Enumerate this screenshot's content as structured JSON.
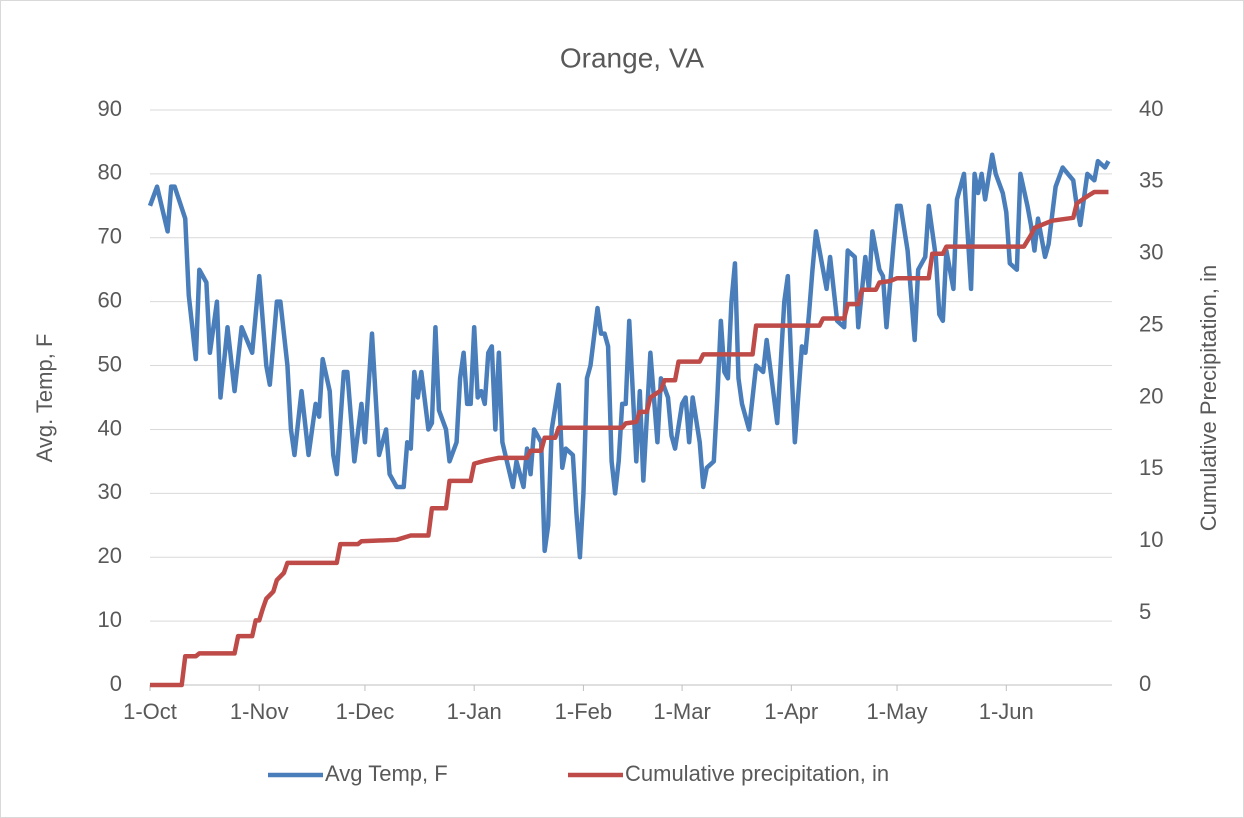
{
  "chart_data": {
    "type": "line",
    "title": "Orange, VA",
    "y_label": "Avg. Temp, F",
    "y2_label": "Cumulative Precipitation, in",
    "xlim": [
      0,
      273
    ],
    "xticks": [
      {
        "value": 0,
        "label": "1-Oct"
      },
      {
        "value": 31,
        "label": "1-Nov"
      },
      {
        "value": 61,
        "label": "1-Dec"
      },
      {
        "value": 92,
        "label": "1-Jan"
      },
      {
        "value": 123,
        "label": "1-Feb"
      },
      {
        "value": 151,
        "label": "1-Mar"
      },
      {
        "value": 182,
        "label": "1-Apr"
      },
      {
        "value": 212,
        "label": "1-May"
      },
      {
        "value": 243,
        "label": "1-Jun"
      }
    ],
    "ylim": [
      0,
      90
    ],
    "yticks": [
      0,
      10,
      20,
      30,
      40,
      50,
      60,
      70,
      80,
      90
    ],
    "y2lim": [
      0,
      40
    ],
    "y2ticks": [
      0,
      5,
      10,
      15,
      20,
      25,
      30,
      35,
      40
    ],
    "grid": true,
    "legend": "bottom",
    "series": [
      {
        "name": "Avg Temp, F",
        "color": "#4a7ebb",
        "x": [
          0,
          2,
          5,
          6,
          7,
          10,
          11,
          13,
          14,
          16,
          17,
          19,
          20,
          22,
          24,
          26,
          29,
          31,
          33,
          34,
          36,
          37,
          39,
          40,
          41,
          43,
          45,
          47,
          48,
          49,
          51,
          52,
          53,
          55,
          56,
          58,
          60,
          61,
          63,
          65,
          67,
          68,
          70,
          72,
          73,
          74,
          75,
          76,
          77,
          79,
          80,
          81,
          82,
          84,
          85,
          87,
          88,
          89,
          90,
          91,
          92,
          93,
          94,
          95,
          96,
          97,
          98,
          99,
          100,
          103,
          104,
          106,
          107,
          108,
          109,
          111,
          112,
          113,
          114,
          116,
          117,
          118,
          120,
          121,
          122,
          123,
          124,
          125,
          127,
          128,
          129,
          130,
          131,
          132,
          133,
          134,
          135,
          136,
          138,
          139,
          140,
          142,
          144,
          145,
          147,
          148,
          149,
          151,
          152,
          153,
          154,
          156,
          157,
          158,
          160,
          161,
          162,
          163,
          164,
          165,
          166,
          167,
          168,
          170,
          171,
          172,
          174,
          175,
          178,
          180,
          181,
          182,
          183,
          185,
          186,
          187,
          188,
          189,
          191,
          192,
          193,
          195,
          197,
          198,
          200,
          201,
          203,
          204,
          205,
          207,
          208,
          209,
          211,
          212,
          213,
          215,
          217,
          218,
          220,
          221,
          223,
          224,
          225,
          226,
          228,
          229,
          231,
          233,
          234,
          235,
          236,
          237,
          239,
          240,
          242,
          243,
          244,
          246,
          247,
          249,
          250,
          251,
          252,
          254,
          255,
          257,
          259,
          262,
          263,
          264,
          266,
          268,
          269,
          271,
          272
        ],
        "values": [
          75,
          78,
          71,
          78,
          78,
          73,
          61,
          51,
          65,
          63,
          52,
          60,
          45,
          56,
          46,
          56,
          52,
          64,
          50,
          47,
          60,
          60,
          50,
          40,
          36,
          46,
          36,
          44,
          42,
          51,
          46,
          36,
          33,
          49,
          49,
          35,
          44,
          38,
          55,
          36,
          40,
          33,
          31,
          31,
          38,
          37,
          49,
          45,
          49,
          40,
          41,
          56,
          43,
          40,
          35,
          38,
          48,
          52,
          44,
          44,
          56,
          45,
          46,
          44,
          52,
          53,
          40,
          52,
          38,
          31,
          35,
          31,
          37,
          33,
          40,
          38,
          21,
          25,
          40,
          47,
          34,
          37,
          36,
          27,
          20,
          30,
          48,
          50,
          59,
          55,
          55,
          53,
          35,
          30,
          35,
          44,
          44,
          57,
          35,
          46,
          32,
          52,
          38,
          48,
          45,
          39,
          37,
          44,
          45,
          38,
          45,
          38,
          31,
          34,
          35,
          45,
          57,
          49,
          48,
          60,
          66,
          48,
          44,
          40,
          45,
          50,
          49,
          54,
          41,
          60,
          64,
          50,
          38,
          53,
          52,
          58,
          65,
          71,
          65,
          62,
          67,
          57,
          56,
          68,
          67,
          56,
          67,
          62,
          71,
          65,
          64,
          56,
          69,
          75,
          75,
          68,
          54,
          65,
          67,
          75,
          67,
          58,
          57,
          68,
          62,
          76,
          80,
          62,
          80,
          77,
          80,
          76,
          83,
          80,
          77,
          74,
          66,
          65,
          80,
          75,
          72,
          68,
          73,
          67,
          69,
          78,
          81,
          79,
          75,
          72,
          80,
          79,
          82,
          81,
          82
        ]
      },
      {
        "name": "Cumulative precipitation, in",
        "color": "#be4b48",
        "axis": "y2",
        "x": [
          0,
          9,
          10,
          13,
          14,
          24,
          25,
          29,
          30,
          31,
          32,
          33,
          35,
          36,
          38,
          39,
          53,
          54,
          59,
          60,
          70,
          74,
          79,
          80,
          84,
          85,
          91,
          92,
          95,
          99,
          107,
          108,
          111,
          112,
          115,
          116,
          134,
          135,
          138,
          139,
          141,
          142,
          145,
          146,
          149,
          150,
          156,
          157,
          171,
          172,
          190,
          191,
          197,
          198,
          201,
          202,
          206,
          207,
          210,
          212,
          221,
          222,
          225,
          226,
          248,
          250,
          251,
          256,
          262,
          263,
          266,
          268,
          272
        ],
        "values": [
          0,
          0,
          2,
          2,
          2.2,
          2.2,
          3.4,
          3.4,
          4.5,
          4.5,
          5.3,
          6,
          6.5,
          7.3,
          7.8,
          8.5,
          8.5,
          9.8,
          9.8,
          10,
          10.1,
          10.4,
          10.4,
          12.3,
          12.3,
          14.2,
          14.2,
          15.4,
          15.6,
          15.8,
          15.8,
          16.3,
          16.3,
          17.2,
          17.2,
          17.9,
          17.9,
          18.2,
          18.3,
          19,
          19,
          20,
          20.5,
          21.2,
          21.2,
          22.5,
          22.5,
          23,
          23,
          25,
          25,
          25.5,
          25.5,
          26.5,
          26.5,
          27.5,
          27.5,
          28,
          28.1,
          28.3,
          28.3,
          30,
          30,
          30.5,
          30.5,
          31.3,
          31.8,
          32.3,
          32.5,
          33.5,
          34,
          34.3,
          34.3
        ]
      }
    ]
  }
}
